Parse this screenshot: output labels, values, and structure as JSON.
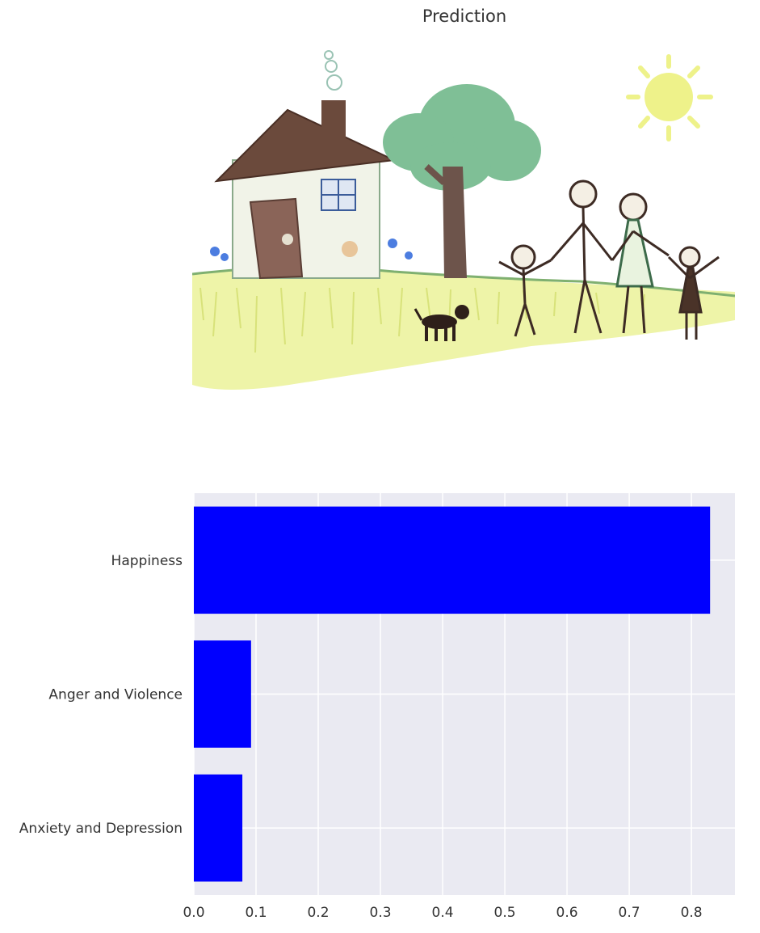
{
  "figure": {
    "title": "Prediction"
  },
  "chart_data": {
    "type": "bar",
    "orientation": "horizontal",
    "title": "Prediction",
    "categories": [
      "Happiness",
      "Anger and Violence",
      "Anxiety and Depression"
    ],
    "values": [
      0.83,
      0.092,
      0.078
    ],
    "xlabel": "",
    "ylabel": "",
    "xlim": [
      0,
      0.87
    ],
    "xticks": [
      "0.0",
      "0.1",
      "0.2",
      "0.3",
      "0.4",
      "0.5",
      "0.6",
      "0.7",
      "0.8"
    ],
    "bar_color": "#0000ff",
    "background_color": "#eaeaf2",
    "grid": true
  }
}
